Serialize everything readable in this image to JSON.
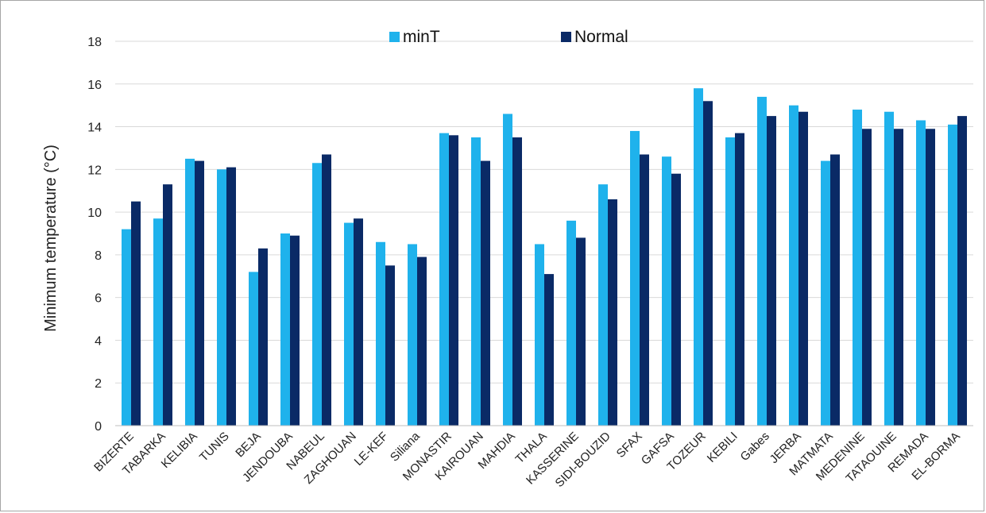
{
  "chart_data": {
    "type": "bar",
    "ylabel": "Minimum temperature (°C)",
    "xlabel": "",
    "ylim": [
      0,
      18
    ],
    "yticks": [
      0,
      2,
      4,
      6,
      8,
      10,
      12,
      14,
      16,
      18
    ],
    "grid": true,
    "legend_position": "top-center",
    "categories": [
      "BIZERTE",
      "TABARKA",
      "KELIBIA",
      "TUNIS",
      "BEJA",
      "JENDOUBA",
      "NABEUL",
      "ZAGHOUAN",
      "LE-KEF",
      "Siliana",
      "MONASTIR",
      "KAIROUAN",
      "MAHDIA",
      "THALA",
      "KASSERINE",
      "SIDI-BOUZID",
      "SFAX",
      "GAFSA",
      "TOZEUR",
      "KEBILI",
      "Gabes",
      "JERBA",
      "MATMATA",
      "MEDENINE",
      "TATAOUINE",
      "REMADA",
      "EL-BORMA"
    ],
    "series": [
      {
        "name": "minT",
        "color": "#1fb2ec",
        "values": [
          9.2,
          9.7,
          12.5,
          12.0,
          7.2,
          9.0,
          12.3,
          9.5,
          8.6,
          8.5,
          13.7,
          13.5,
          14.6,
          8.5,
          9.6,
          11.3,
          13.8,
          12.6,
          15.8,
          13.5,
          15.4,
          15.0,
          12.4,
          14.8,
          14.7,
          14.3,
          14.1
        ]
      },
      {
        "name": "Normal",
        "color": "#0a2a66",
        "values": [
          10.5,
          11.3,
          12.4,
          12.1,
          8.3,
          8.9,
          12.7,
          9.7,
          7.5,
          7.9,
          13.6,
          12.4,
          13.5,
          7.1,
          8.8,
          10.6,
          12.7,
          11.8,
          15.2,
          13.7,
          14.5,
          14.7,
          12.7,
          13.9,
          13.9,
          13.9,
          14.5
        ]
      }
    ]
  }
}
